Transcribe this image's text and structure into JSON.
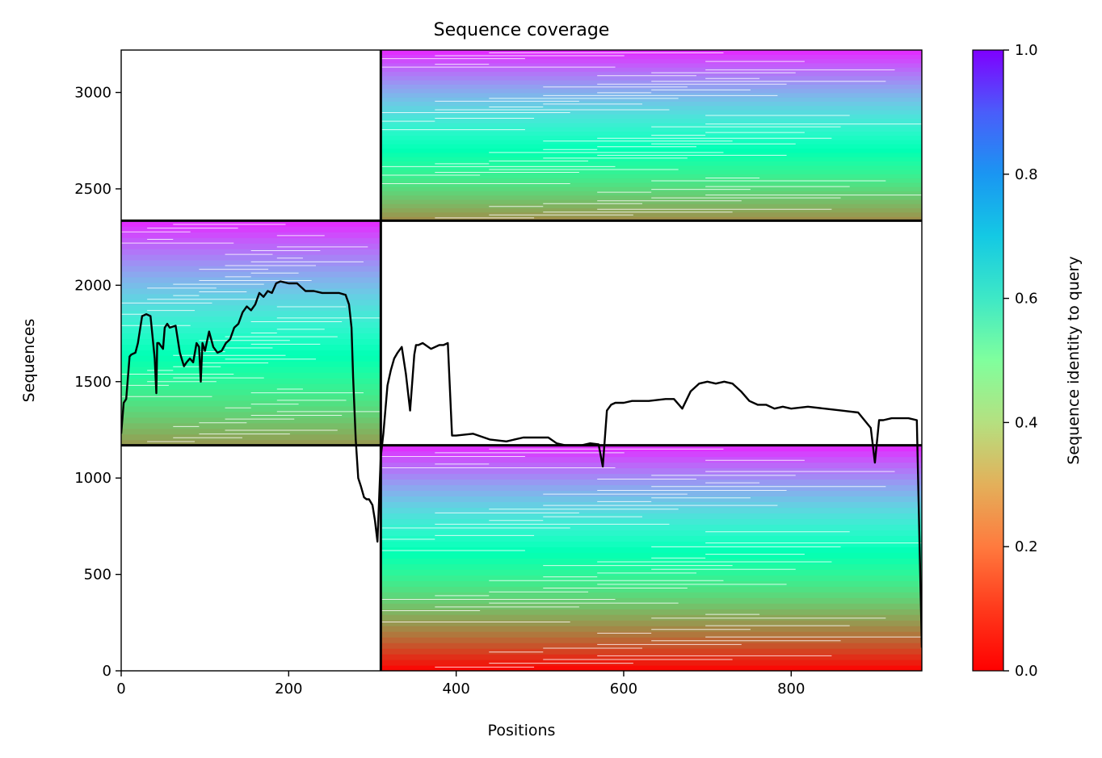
{
  "chart_data": {
    "type": "heatmap",
    "title": "Sequence coverage",
    "xlabel": "Positions",
    "ylabel": "Sequences",
    "xlim": [
      0,
      956
    ],
    "ylim": [
      0,
      3220
    ],
    "xticks": [
      0,
      200,
      400,
      600,
      800
    ],
    "yticks": [
      0,
      500,
      1000,
      1500,
      2000,
      2500,
      3000
    ],
    "grid": false,
    "colorbar": {
      "label": "Sequence identity to query",
      "range": [
        0,
        1
      ],
      "ticks": [
        "0.0",
        "0.2",
        "0.4",
        "0.6",
        "0.8",
        "1.0"
      ],
      "colormap": "rainbow_r",
      "colors": [
        "#ff0000",
        "#ff6a36",
        "#d6c35c",
        "#80ff9d",
        "#2ad4ea",
        "#00b0f0",
        "#7f00ff"
      ]
    },
    "segment_boundaries": {
      "x": [
        310
      ],
      "y": [
        1170,
        2335
      ]
    },
    "blocks": [
      {
        "x": [
          0,
          310
        ],
        "y": [
          1170,
          2335
        ],
        "identity_range": [
          0.2,
          0.95
        ]
      },
      {
        "x": [
          310,
          956
        ],
        "y": [
          2335,
          3220
        ],
        "identity_range": [
          0.18,
          0.95
        ]
      },
      {
        "x": [
          310,
          956
        ],
        "y": [
          0,
          1170
        ],
        "identity_range": [
          0.0,
          0.95
        ]
      }
    ],
    "coverage_line": {
      "name": "coverage",
      "x": [
        0,
        3,
        6,
        10,
        12,
        17,
        20,
        25,
        30,
        35,
        40,
        42,
        43,
        45,
        50,
        52,
        55,
        58,
        65,
        70,
        75,
        78,
        82,
        86,
        90,
        93,
        95,
        97,
        100,
        105,
        110,
        115,
        120,
        125,
        130,
        135,
        140,
        145,
        150,
        155,
        160,
        165,
        170,
        175,
        180,
        185,
        190,
        200,
        210,
        220,
        230,
        240,
        250,
        260,
        268,
        272,
        275,
        277,
        280,
        283,
        286,
        290,
        293,
        296,
        300,
        303,
        306,
        310,
        313,
        318,
        322,
        326,
        330,
        335,
        340,
        345,
        350,
        352,
        355,
        360,
        370,
        380,
        385,
        390,
        395,
        400,
        420,
        440,
        460,
        480,
        500,
        510,
        520,
        530,
        540,
        550,
        560,
        570,
        575,
        580,
        585,
        590,
        600,
        610,
        630,
        650,
        660,
        670,
        680,
        690,
        700,
        710,
        720,
        730,
        740,
        750,
        760,
        770,
        780,
        790,
        800,
        820,
        840,
        860,
        880,
        895,
        900,
        905,
        910,
        920,
        930,
        940,
        950,
        956
      ],
      "y": [
        1230,
        1390,
        1410,
        1630,
        1640,
        1650,
        1700,
        1840,
        1850,
        1840,
        1620,
        1440,
        1700,
        1700,
        1670,
        1780,
        1800,
        1780,
        1790,
        1650,
        1580,
        1600,
        1620,
        1600,
        1700,
        1680,
        1500,
        1700,
        1660,
        1760,
        1680,
        1650,
        1660,
        1700,
        1720,
        1780,
        1800,
        1860,
        1890,
        1870,
        1900,
        1960,
        1940,
        1970,
        1960,
        2010,
        2020,
        2010,
        2010,
        1970,
        1970,
        1960,
        1960,
        1960,
        1950,
        1900,
        1780,
        1520,
        1200,
        1000,
        960,
        900,
        890,
        890,
        860,
        780,
        670,
        1110,
        1230,
        1480,
        1560,
        1620,
        1650,
        1680,
        1540,
        1350,
        1640,
        1690,
        1690,
        1700,
        1670,
        1690,
        1690,
        1700,
        1220,
        1220,
        1230,
        1200,
        1190,
        1210,
        1210,
        1210,
        1180,
        1170,
        1170,
        1170,
        1180,
        1175,
        1060,
        1350,
        1380,
        1390,
        1390,
        1400,
        1400,
        1410,
        1410,
        1360,
        1450,
        1490,
        1500,
        1490,
        1500,
        1490,
        1450,
        1400,
        1380,
        1380,
        1360,
        1370,
        1360,
        1370,
        1360,
        1350,
        1340,
        1260,
        1080,
        1300,
        1300,
        1310,
        1310,
        1310,
        1300,
        120
      ]
    }
  }
}
